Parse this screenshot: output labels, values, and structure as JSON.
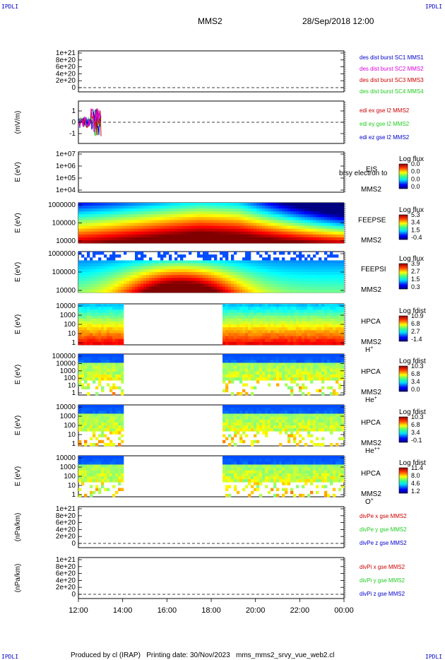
{
  "header": {
    "corner_tl": "IPDLI",
    "corner_tr": "IPDLI",
    "corner_bl": "IPDLI",
    "corner_br": "IPDLI",
    "title": "MMS2",
    "date": "28/Sep/2018 12:00"
  },
  "footer": {
    "text": "Produced by cl (IRAP)   Printing date: 30/Nov/2023   mms_mms2_srvy_vue_web2.cl"
  },
  "colors": {
    "red": "#cc0000",
    "green": "#22cc22",
    "blue": "#0000cc",
    "magenta": "#dd00dd",
    "dashed": "#000000"
  },
  "chart_data": [
    {
      "type": "line",
      "yticks": [
        "1e+21",
        "8e+20",
        "6e+20",
        "4e+20",
        "2e+20",
        "0"
      ],
      "legend": [
        {
          "name": "des dist burst SC1 MMS1",
          "color": "#0000cc"
        },
        {
          "name": "des dist burst SC2 MMS2",
          "color": "#dd00dd"
        },
        {
          "name": "des dist burst SC3 MMS3",
          "color": "#cc0000"
        },
        {
          "name": "des dist burst SC4 MMS4",
          "color": "#22cc22"
        }
      ]
    },
    {
      "type": "line",
      "ylabel": "(mV/m)",
      "yticks": [
        "1",
        "0",
        "-1"
      ],
      "ylim": [
        -2,
        2
      ],
      "legend": [
        {
          "name": "edi ex gse l2 MMS2",
          "color": "#cc0000"
        },
        {
          "name": "edi ey gse l2 MMS2",
          "color": "#22cc22"
        },
        {
          "name": "edi ez gse l2 MMS2",
          "color": "#0000cc"
        }
      ]
    },
    {
      "type": "heatmap",
      "ylabel": "E (eV)",
      "yticks": [
        "1e+07",
        "1e+06",
        "1e+05",
        "1e+04"
      ],
      "instrument": "EIS",
      "spacecraft": "MMS2",
      "overlay": "brsy electron to",
      "cbar_title": "Log flux",
      "cbar_ticks": [
        "0.0",
        "0.0",
        "0.0",
        "0.0"
      ]
    },
    {
      "type": "heatmap",
      "ylabel": "E (eV)",
      "yticks": [
        "1000000",
        "100000",
        "10000"
      ],
      "instrument": "FEEPSE",
      "spacecraft": "MMS2",
      "cbar_title": "Log flux",
      "cbar_ticks": [
        "5.3",
        "3.4",
        "1.5",
        "-0.4"
      ]
    },
    {
      "type": "heatmap",
      "ylabel": "E (eV)",
      "yticks": [
        "1000000",
        "100000",
        "10000"
      ],
      "instrument": "FEEPSI",
      "spacecraft": "MMS2",
      "cbar_title": "Log flux",
      "cbar_ticks": [
        "3.9",
        "2.7",
        "1.5",
        "0.3"
      ]
    },
    {
      "type": "heatmap",
      "ylabel": "E (eV)",
      "yticks": [
        "10000",
        "1000",
        "100",
        "10",
        "1"
      ],
      "instrument": "HPCA",
      "spacecraft": "MMS2",
      "species_base": "H",
      "species_sup": "+",
      "cbar_title": "Log fdist",
      "cbar_ticks": [
        "10.9",
        "6.8",
        "2.7",
        "-1.4"
      ]
    },
    {
      "type": "heatmap",
      "ylabel": "E (eV)",
      "yticks": [
        "100000",
        "10000",
        "1000",
        "100",
        "10",
        "1"
      ],
      "instrument": "HPCA",
      "spacecraft": "MMS2",
      "species_base": "He",
      "species_sup": "+",
      "cbar_title": "Log fdist",
      "cbar_ticks": [
        "10.3",
        "6.8",
        "3.4",
        "0.0"
      ]
    },
    {
      "type": "heatmap",
      "ylabel": "E (eV)",
      "yticks": [
        "10000",
        "1000",
        "100",
        "10",
        "1"
      ],
      "instrument": "HPCA",
      "spacecraft": "MMS2",
      "species_base": "He",
      "species_sup": "++",
      "cbar_title": "Log fdist",
      "cbar_ticks": [
        "10.3",
        "6.8",
        "3.4",
        "-0.1"
      ]
    },
    {
      "type": "heatmap",
      "ylabel": "E (eV)",
      "yticks": [
        "10000",
        "1000",
        "100",
        "10",
        "1"
      ],
      "instrument": "HPCA",
      "spacecraft": "MMS2",
      "species_base": "O",
      "species_sup": "+",
      "cbar_title": "Log fdist",
      "cbar_ticks": [
        "11.4",
        "8.0",
        "4.6",
        "1.2"
      ]
    },
    {
      "type": "line",
      "ylabel": "(nPa/km)",
      "yticks": [
        "1e+21",
        "8e+20",
        "6e+20",
        "4e+20",
        "2e+20",
        "0"
      ],
      "legend": [
        {
          "name": "divPe x gse MMS2",
          "color": "#cc0000"
        },
        {
          "name": "divPe y gse MMS2",
          "color": "#22cc22"
        },
        {
          "name": "divPe z gse MMS2",
          "color": "#0000cc"
        }
      ]
    },
    {
      "type": "line",
      "ylabel": "(nPa/km)",
      "yticks": [
        "1e+21",
        "8e+20",
        "6e+20",
        "4e+20",
        "2e+20",
        "0"
      ],
      "legend": [
        {
          "name": "divPi x gse MMS2",
          "color": "#cc0000"
        },
        {
          "name": "divPi y gse MMS2",
          "color": "#22cc22"
        },
        {
          "name": "divPi z gse MMS2",
          "color": "#0000cc"
        }
      ]
    }
  ],
  "xaxis": {
    "ticks": [
      "12:00",
      "14:00",
      "16:00",
      "18:00",
      "20:00",
      "22:00",
      "00:00"
    ]
  }
}
